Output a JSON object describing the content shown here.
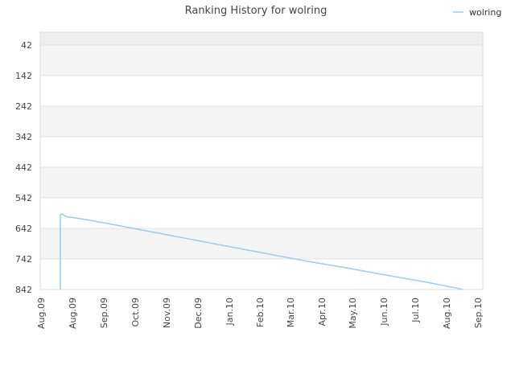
{
  "chart_data": {
    "type": "line",
    "title": "Ranking History for wolring",
    "xlabel": "",
    "ylabel": "",
    "legend": "top-right",
    "grid": true,
    "y_inverted": true,
    "ylim": [
      842,
      0
    ],
    "y_ticks": [
      42,
      142,
      242,
      342,
      442,
      542,
      642,
      742,
      842
    ],
    "x_ticks": [
      "Aug.09",
      "Aug.09",
      "Sep.09",
      "Oct.09",
      "Nov.09",
      "Dec.09",
      "Jan.10",
      "Feb.10",
      "Mar.10",
      "Apr.10",
      "May.10",
      "Jun.10",
      "Jul.10",
      "Aug.10",
      "Sep.10"
    ],
    "series": [
      {
        "name": "wolring",
        "color": "#99ccee",
        "points": [
          {
            "x": "Aug.09",
            "y": 842
          },
          {
            "x": "Aug.09",
            "y": 597
          },
          {
            "x": "Aug.09",
            "y": 595
          },
          {
            "x": "Aug.09",
            "y": 603
          },
          {
            "x": "Sep.09",
            "y": 614
          },
          {
            "x": "Oct.09",
            "y": 634
          },
          {
            "x": "Nov.09",
            "y": 654
          },
          {
            "x": "Dec.09",
            "y": 674
          },
          {
            "x": "Jan.10",
            "y": 694
          },
          {
            "x": "Feb.10",
            "y": 714
          },
          {
            "x": "Mar.10",
            "y": 734
          },
          {
            "x": "Apr.10",
            "y": 753
          },
          {
            "x": "May.10",
            "y": 771
          },
          {
            "x": "Jun.10",
            "y": 795
          },
          {
            "x": "Jul.10",
            "y": 818
          },
          {
            "x": "Aug.10",
            "y": 840
          },
          {
            "x": "Aug.10",
            "y": 842
          }
        ]
      }
    ]
  }
}
